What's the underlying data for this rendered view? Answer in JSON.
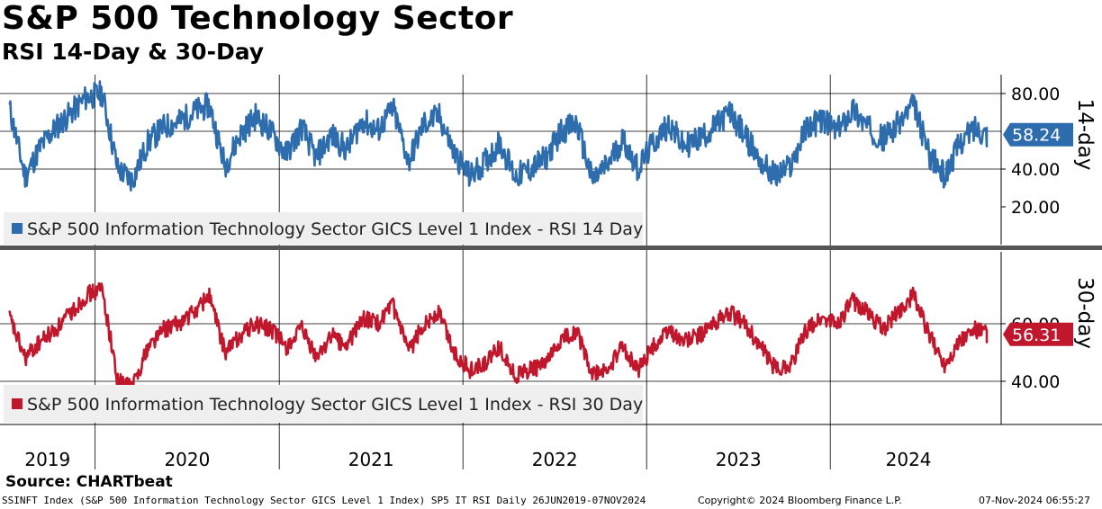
{
  "title": "S&P 500 Technology Sector",
  "subtitle": "RSI 14-Day & 30-Day",
  "footer": {
    "source": "Source: CHARTbeat",
    "ticker_line": "SSINFT Index (S&P 500 Information Technology Sector GICS Level 1 Index) SP5 IT RSI  Daily 26JUN2019-07NOV2024",
    "copyright": "Copyright© 2024 Bloomberg Finance L.P.",
    "timestamp": "07-Nov-2024 06:55:27"
  },
  "colors": {
    "rsi14": "#2e6dad",
    "rsi30": "#c0172d",
    "legend_bg": "#efefef",
    "grid": "#000000",
    "separator": "#555555"
  },
  "chart_data": [
    {
      "type": "line",
      "axis_side_label": "14-day",
      "ylim": [
        0,
        90
      ],
      "yticks": [
        20,
        40,
        80
      ],
      "ytick_labels": [
        "20.00",
        "40.00",
        "80.00"
      ],
      "gridlines_y": [
        40,
        60,
        80
      ],
      "last_value": 58.24,
      "last_value_label": "58.24",
      "legend": "S&P 500 Information Technology Sector GICS Level 1 Index - RSI 14 Day",
      "series": [
        {
          "name": "S&P 500 Information Technology Sector GICS Level 1 Index - RSI 14 Day",
          "color": "#2e6dad",
          "x": [
            "2019-07",
            "2019-08",
            "2019-09",
            "2019-10",
            "2019-11",
            "2019-12",
            "2020-01",
            "2020-02",
            "2020-03",
            "2020-04",
            "2020-05",
            "2020-06",
            "2020-07",
            "2020-08",
            "2020-09",
            "2020-10",
            "2020-11",
            "2020-12",
            "2021-01",
            "2021-02",
            "2021-03",
            "2021-04",
            "2021-05",
            "2021-06",
            "2021-07",
            "2021-08",
            "2021-09",
            "2021-10",
            "2021-11",
            "2021-12",
            "2022-01",
            "2022-02",
            "2022-03",
            "2022-04",
            "2022-05",
            "2022-06",
            "2022-07",
            "2022-08",
            "2022-09",
            "2022-10",
            "2022-11",
            "2022-12",
            "2023-01",
            "2023-02",
            "2023-03",
            "2023-04",
            "2023-05",
            "2023-06",
            "2023-07",
            "2023-08",
            "2023-09",
            "2023-10",
            "2023-11",
            "2023-12",
            "2024-01",
            "2024-02",
            "2024-03",
            "2024-04",
            "2024-05",
            "2024-06",
            "2024-07",
            "2024-08",
            "2024-09",
            "2024-10",
            "2024-11"
          ],
          "values": [
            72,
            36,
            52,
            62,
            70,
            78,
            80,
            40,
            34,
            54,
            62,
            65,
            70,
            74,
            42,
            58,
            68,
            60,
            48,
            62,
            46,
            58,
            50,
            66,
            60,
            72,
            44,
            64,
            68,
            48,
            36,
            44,
            54,
            36,
            40,
            46,
            60,
            64,
            34,
            42,
            56,
            40,
            54,
            64,
            52,
            56,
            62,
            70,
            58,
            44,
            36,
            42,
            62,
            66,
            60,
            72,
            62,
            56,
            64,
            74,
            48,
            36,
            54,
            62,
            58
          ]
        }
      ]
    },
    {
      "type": "line",
      "axis_side_label": "30-day",
      "ylim": [
        25,
        85
      ],
      "yticks": [
        40,
        60
      ],
      "ytick_labels": [
        "40.00",
        "60.00"
      ],
      "gridlines_y": [
        40,
        60
      ],
      "last_value": 56.31,
      "last_value_label": "56.31",
      "legend": "S&P 500 Information Technology Sector GICS Level 1 Index - RSI 30 Day",
      "series": [
        {
          "name": "S&P 500 Information Technology Sector GICS Level 1 Index - RSI 30 Day",
          "color": "#c0172d",
          "x": [
            "2019-07",
            "2019-08",
            "2019-09",
            "2019-10",
            "2019-11",
            "2019-12",
            "2020-01",
            "2020-02",
            "2020-03",
            "2020-04",
            "2020-05",
            "2020-06",
            "2020-07",
            "2020-08",
            "2020-09",
            "2020-10",
            "2020-11",
            "2020-12",
            "2021-01",
            "2021-02",
            "2021-03",
            "2021-04",
            "2021-05",
            "2021-06",
            "2021-07",
            "2021-08",
            "2021-09",
            "2021-10",
            "2021-11",
            "2021-12",
            "2022-01",
            "2022-02",
            "2022-03",
            "2022-04",
            "2022-05",
            "2022-06",
            "2022-07",
            "2022-08",
            "2022-09",
            "2022-10",
            "2022-11",
            "2022-12",
            "2023-01",
            "2023-02",
            "2023-03",
            "2023-04",
            "2023-05",
            "2023-06",
            "2023-07",
            "2023-08",
            "2023-09",
            "2023-10",
            "2023-11",
            "2023-12",
            "2024-01",
            "2024-02",
            "2024-03",
            "2024-04",
            "2024-05",
            "2024-06",
            "2024-07",
            "2024-08",
            "2024-09",
            "2024-10",
            "2024-11"
          ],
          "values": [
            62,
            48,
            54,
            58,
            64,
            70,
            72,
            40,
            38,
            52,
            58,
            60,
            64,
            70,
            50,
            56,
            60,
            58,
            52,
            58,
            48,
            56,
            52,
            62,
            60,
            66,
            50,
            60,
            64,
            50,
            44,
            46,
            52,
            42,
            44,
            46,
            54,
            58,
            42,
            44,
            52,
            44,
            52,
            58,
            54,
            56,
            60,
            64,
            60,
            52,
            44,
            46,
            58,
            62,
            60,
            68,
            64,
            58,
            64,
            70,
            56,
            46,
            54,
            58,
            56
          ]
        }
      ]
    }
  ],
  "x_axis": {
    "year_labels": [
      "2019",
      "2020",
      "2021",
      "2022",
      "2023",
      "2024"
    ]
  }
}
